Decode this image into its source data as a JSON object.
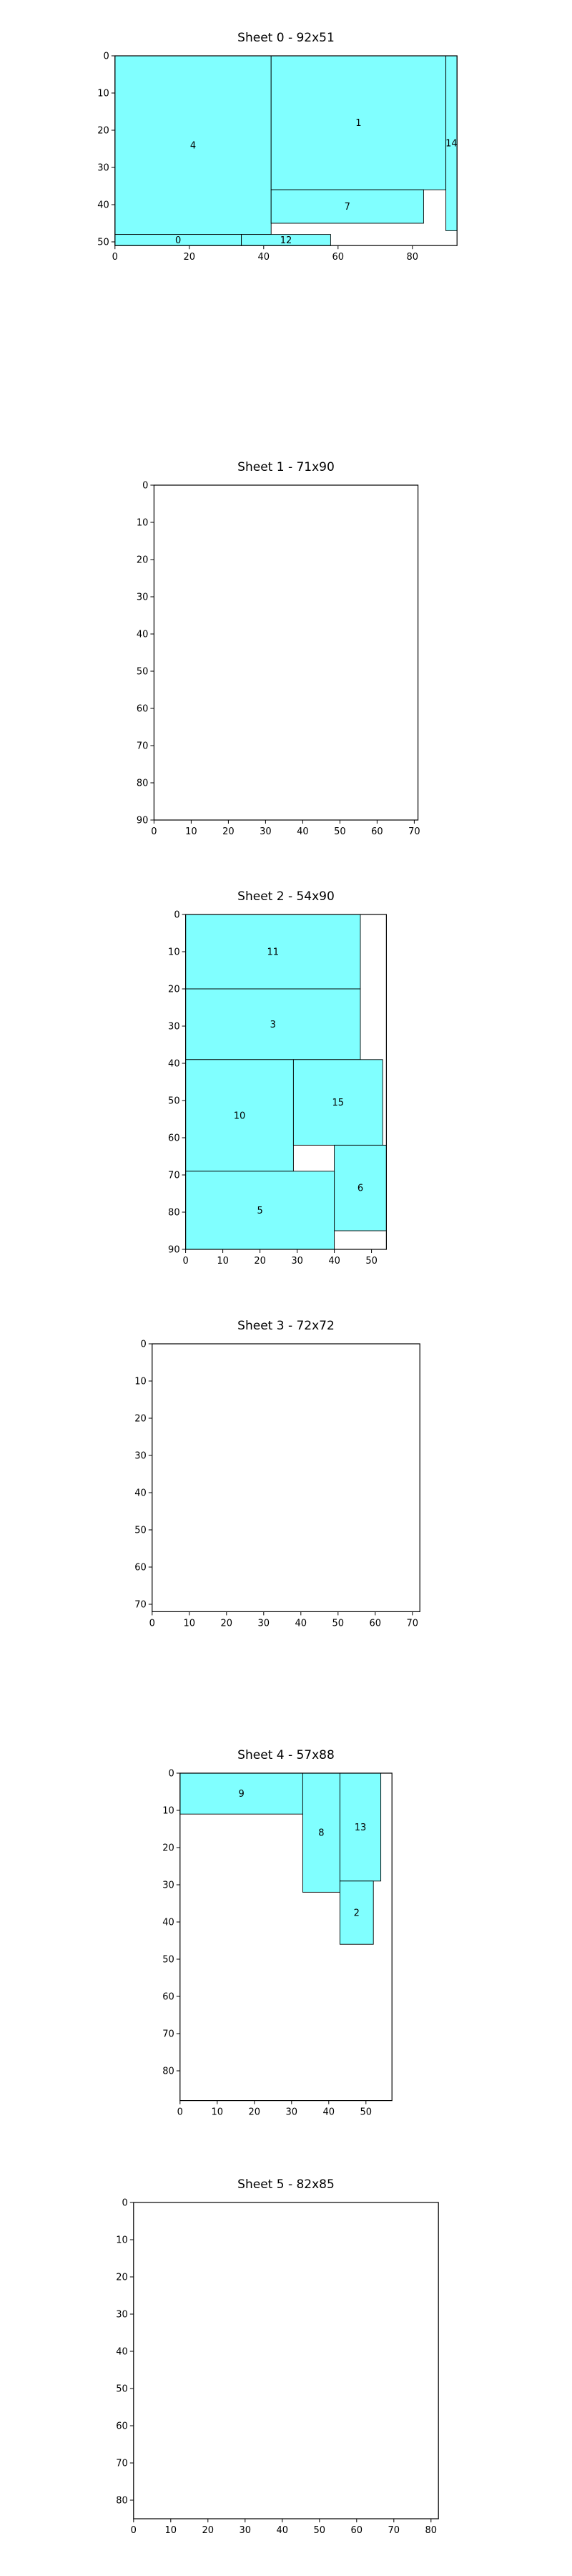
{
  "colors": {
    "fill": "#80ffff",
    "edge": "#000000",
    "background": "#ffffff"
  },
  "chart_data": [
    {
      "type": "bin-packing-layout",
      "title": "Sheet 0 - 92x51",
      "width": 92,
      "height": 51,
      "xlim": [
        0,
        92
      ],
      "ylim": [
        51,
        0
      ],
      "xticks": [
        0,
        20,
        40,
        60,
        80
      ],
      "yticks": [
        0,
        10,
        20,
        30,
        40,
        50
      ],
      "items": [
        {
          "id": "4",
          "x": 0,
          "y": 0,
          "w": 42,
          "h": 48
        },
        {
          "id": "1",
          "x": 42,
          "y": 0,
          "w": 47,
          "h": 36
        },
        {
          "id": "14",
          "x": 89,
          "y": 0,
          "w": 3,
          "h": 47
        },
        {
          "id": "7",
          "x": 42,
          "y": 36,
          "w": 41,
          "h": 9
        },
        {
          "id": "0",
          "x": 0,
          "y": 48,
          "w": 34,
          "h": 3
        },
        {
          "id": "12",
          "x": 34,
          "y": 48,
          "w": 24,
          "h": 3
        }
      ]
    },
    {
      "type": "bin-packing-layout",
      "title": "Sheet 1 - 71x90",
      "width": 71,
      "height": 90,
      "xlim": [
        0,
        71
      ],
      "ylim": [
        90,
        0
      ],
      "xticks": [
        0,
        10,
        20,
        30,
        40,
        50,
        60,
        70
      ],
      "yticks": [
        0,
        10,
        20,
        30,
        40,
        50,
        60,
        70,
        80,
        90
      ],
      "items": []
    },
    {
      "type": "bin-packing-layout",
      "title": "Sheet 2 - 54x90",
      "width": 54,
      "height": 90,
      "xlim": [
        0,
        54
      ],
      "ylim": [
        90,
        0
      ],
      "xticks": [
        0,
        10,
        20,
        30,
        40,
        50
      ],
      "yticks": [
        0,
        10,
        20,
        30,
        40,
        50,
        60,
        70,
        80,
        90
      ],
      "items": [
        {
          "id": "11",
          "x": 0,
          "y": 0,
          "w": 47,
          "h": 20
        },
        {
          "id": "3",
          "x": 0,
          "y": 20,
          "w": 47,
          "h": 19
        },
        {
          "id": "10",
          "x": 0,
          "y": 39,
          "w": 29,
          "h": 30
        },
        {
          "id": "15",
          "x": 29,
          "y": 39,
          "w": 24,
          "h": 23
        },
        {
          "id": "6",
          "x": 40,
          "y": 62,
          "w": 14,
          "h": 23
        },
        {
          "id": "5",
          "x": 0,
          "y": 69,
          "w": 40,
          "h": 21
        }
      ]
    },
    {
      "type": "bin-packing-layout",
      "title": "Sheet 3 - 72x72",
      "width": 72,
      "height": 72,
      "xlim": [
        0,
        72
      ],
      "ylim": [
        72,
        0
      ],
      "xticks": [
        0,
        10,
        20,
        30,
        40,
        50,
        60,
        70
      ],
      "yticks": [
        0,
        10,
        20,
        30,
        40,
        50,
        60,
        70
      ],
      "items": []
    },
    {
      "type": "bin-packing-layout",
      "title": "Sheet 4 - 57x88",
      "width": 57,
      "height": 88,
      "xlim": [
        0,
        57
      ],
      "ylim": [
        88,
        0
      ],
      "xticks": [
        0,
        10,
        20,
        30,
        40,
        50
      ],
      "yticks": [
        0,
        10,
        20,
        30,
        40,
        50,
        60,
        70,
        80
      ],
      "items": [
        {
          "id": "9",
          "x": 0,
          "y": 0,
          "w": 33,
          "h": 11
        },
        {
          "id": "8",
          "x": 33,
          "y": 0,
          "w": 10,
          "h": 32
        },
        {
          "id": "13",
          "x": 43,
          "y": 0,
          "w": 11,
          "h": 29
        },
        {
          "id": "2",
          "x": 43,
          "y": 29,
          "w": 9,
          "h": 17
        }
      ]
    },
    {
      "type": "bin-packing-layout",
      "title": "Sheet 5 - 82x85",
      "width": 82,
      "height": 85,
      "xlim": [
        0,
        82
      ],
      "ylim": [
        85,
        0
      ],
      "xticks": [
        0,
        10,
        20,
        30,
        40,
        50,
        60,
        70,
        80
      ],
      "yticks": [
        0,
        10,
        20,
        30,
        40,
        50,
        60,
        70,
        80
      ],
      "items": []
    }
  ]
}
